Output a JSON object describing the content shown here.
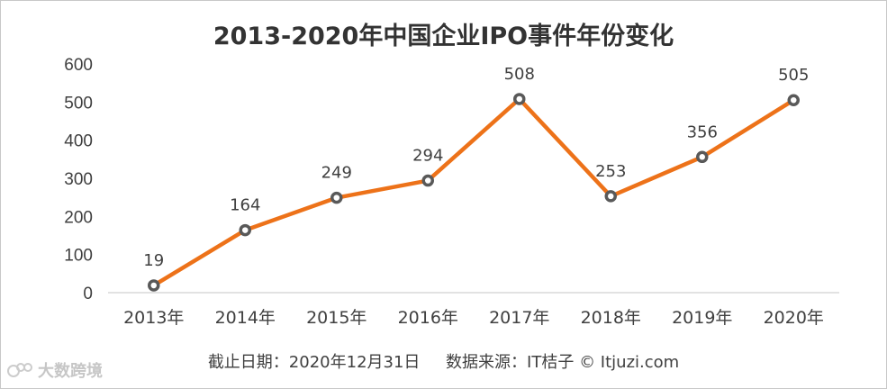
{
  "title": "2013-2020年中国企业IPO事件年份变化",
  "footer": {
    "date_label": "截止日期：2020年12月31日",
    "source_label": "数据来源：IT桔子 © Itjuzi.com"
  },
  "watermark": {
    "text": "大数跨境",
    "icon": "dashuju-logo-icon"
  },
  "colors": {
    "line": "#ed7219",
    "marker_fill": "#ffffff",
    "marker_stroke": "#595959",
    "axis": "#d9d9d9",
    "text": "#404040"
  },
  "chart_data": {
    "type": "line",
    "title": "2013-2020年中国企业IPO事件年份变化",
    "categories": [
      "2013年",
      "2014年",
      "2015年",
      "2016年",
      "2017年",
      "2018年",
      "2019年",
      "2020年"
    ],
    "values": [
      19,
      164,
      249,
      294,
      508,
      253,
      356,
      505
    ],
    "data_labels": [
      "19",
      "164",
      "249",
      "294",
      "508",
      "253",
      "356",
      "505"
    ],
    "xlabel": "",
    "ylabel": "",
    "ylim": [
      0,
      600
    ],
    "yticks": [
      "0",
      "100",
      "200",
      "300",
      "400",
      "500",
      "600"
    ],
    "grid": false,
    "legend": "none"
  }
}
